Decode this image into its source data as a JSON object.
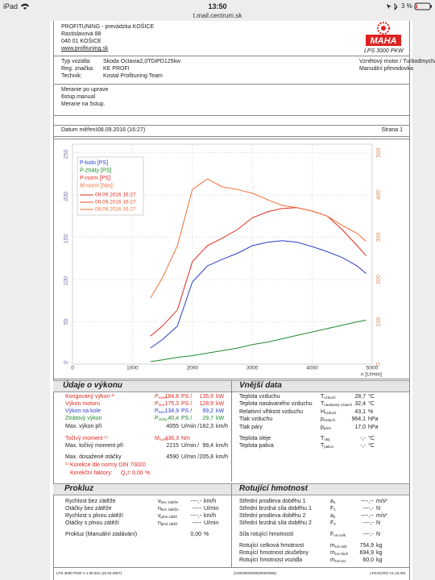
{
  "status_bar": {
    "device": "iPad",
    "time": "13:50",
    "battery": "3 %",
    "url": "t.mail.centrum.sk"
  },
  "header": {
    "company": [
      "PROFITUNING - prevádzka KOŠICE",
      "Rastislavova 88",
      "040 01 KOŠICE",
      "www.profituning.sk"
    ],
    "logo": "MAHA",
    "model": "LPS 3000 PKW"
  },
  "vehicle": {
    "rows": [
      [
        "Typ vozidla:",
        "Skoda Octavia2,0TDiPD125kw"
      ],
      [
        "Reg. značka:",
        "KE PROFI"
      ],
      [
        "Technik:",
        "Kostal Profituning Team"
      ]
    ],
    "engine": "Vznětový motor / Turbodmychadlo (vzduchem chlazené)",
    "gearbox": "Manuální převodovka"
  },
  "notes": [
    "Meranie po uprave",
    "6stup.manual",
    "Merane na 5stup."
  ],
  "date": {
    "label": "Datum měření:",
    "value": "08.09.2016 (16:27)",
    "page": "Strana 1"
  },
  "chart_data": {
    "type": "line",
    "x": [
      1300,
      1500,
      1750,
      2000,
      2250,
      2500,
      2750,
      3000,
      3250,
      3500,
      3750,
      4000,
      4250,
      4500,
      4750,
      4900
    ],
    "series": [
      {
        "name": "P-kolo [PS]",
        "color": "#2b3fc4",
        "values": [
          19,
          29,
          45,
          97,
          116,
          124,
          131,
          140,
          144,
          146,
          144,
          139,
          133,
          126,
          116,
          107
        ]
      },
      {
        "name": "P-ztráty [PS]",
        "color": "#1f8a2a",
        "values": [
          3,
          5,
          8,
          10,
          13,
          16,
          19,
          23,
          26,
          30,
          34,
          38,
          42,
          46,
          50,
          52
        ]
      },
      {
        "name": "P-norm [PS]",
        "color": "#e02a22",
        "values": [
          33,
          45,
          64,
          121,
          140,
          149,
          159,
          173,
          180,
          184,
          185,
          181,
          175,
          159,
          140,
          128
        ]
      },
      {
        "name": "M-norm [Nm]",
        "color": "#f0703a",
        "axis": "y2",
        "values": [
          156,
          204,
          280,
          413,
          438,
          419,
          413,
          404,
          389,
          375,
          370,
          362,
          350,
          328,
          309,
          290
        ]
      }
    ],
    "runs": [
      {
        "label": "08.09.2016 16:27",
        "color": "#e02a22"
      },
      {
        "label": "08.09.2016 16:27",
        "color": "#e84a30"
      },
      {
        "label": "08.09.2016 16:27",
        "color": "#f0703a"
      }
    ],
    "xlim": [
      0,
      5000
    ],
    "xticks": [
      0,
      1000,
      2000,
      3000,
      4000,
      5000
    ],
    "x_label": "n [U/min]",
    "ylim": [
      0,
      260
    ],
    "yticks": [
      0,
      50,
      100,
      150,
      200,
      250
    ],
    "y_color": "#7a70a8",
    "y2lim": [
      0,
      520
    ],
    "y2ticks": [
      0,
      100,
      200,
      300,
      400,
      500
    ],
    "y2_color": "#e8875a",
    "grid": true
  },
  "performance": {
    "title": "Údaje o výkonu",
    "rows": [
      {
        "label": "Korigovaný výkon ¹⁾",
        "sym": "P",
        "sub": "norm",
        "value": "184,8",
        "unit": "PS /",
        "value2": "135,9",
        "unit2": "kW",
        "color": "#e02a22"
      },
      {
        "label": "Výkon motoru",
        "sym": "P",
        "sub": "mot",
        "value": "175,3",
        "unit": "PS /",
        "value2": "128,9",
        "unit2": "kW",
        "color": "#e02a22"
      },
      {
        "label": "Výkon na kole",
        "sym": "P",
        "sub": "kolo",
        "value": "134,9",
        "unit": "PS /",
        "value2": "99,2",
        "unit2": "kW",
        "color": "#2b3fc4"
      },
      {
        "label": "Ztrátový výkon",
        "sym": "P",
        "sub": "ztráty",
        "value": "40,4",
        "unit": "PS /",
        "value2": "29,7",
        "unit2": "kW",
        "color": "#1f8a2a"
      },
      {
        "label": "Max. výkon při",
        "value": "4055",
        "unit": "U/min /",
        "value2": "182,3",
        "unit2": "km/h",
        "color": "#222222"
      },
      {
        "label": "Točivý moment ¹⁾",
        "sym": "M",
        "sub": "norm",
        "value": "436,3",
        "unit": "Nm",
        "color": "#e02a22"
      },
      {
        "label": "Max. točivý moment při",
        "value": "2215",
        "unit": "U/min /",
        "value2": "99,4",
        "unit2": "km/h",
        "color": "#222222"
      },
      {
        "label": "Max. dosažené otáčky",
        "value": "4590",
        "unit": "U/min /",
        "value2": "205,8",
        "unit2": "km/h",
        "color": "#222222"
      }
    ],
    "footnote": "¹⁾ Korekce dle normy DIN 70020",
    "factor": {
      "label": "Korekční faktory:",
      "sym": "Q",
      "sub": "o",
      "value": "= 0,00",
      "unit": "%"
    },
    "note_color": "#e02a22"
  },
  "ambient": {
    "title": "Vnější data",
    "rows": [
      {
        "label": "Teplota vzduchu",
        "sym": "T",
        "sub": "vzduch",
        "value": "28,7",
        "unit": "°C"
      },
      {
        "label": "Teplota nasávaného vzduchu",
        "sym": "T",
        "sub": "nasávaný vzduch",
        "value": "32,4",
        "unit": "°C"
      },
      {
        "label": "Relativní vlhkost vzduchu",
        "sym": "H",
        "sub": "vzduch",
        "value": "43,1",
        "unit": "%"
      },
      {
        "label": "Tlak vzduchu",
        "sym": "p",
        "sub": "vzduch",
        "value": "964,1",
        "unit": "hPa"
      },
      {
        "label": "Tlak páry",
        "sym": "p",
        "sub": "pára",
        "value": "17,0",
        "unit": "hPa"
      },
      {
        "label": "Teplota oleje",
        "sym": "T",
        "sub": "olej",
        "value": "-,-",
        "unit": "°C"
      },
      {
        "label": "Teplota paliva",
        "sym": "T",
        "sub": "palivo",
        "value": "-,-",
        "unit": "°C"
      }
    ]
  },
  "slip": {
    "title": "Prokluz",
    "rows": [
      {
        "label": "Rychlost bez zátěže",
        "sym": "v",
        "sub": "bez zátěže",
        "value": "----,-",
        "unit": "km/h"
      },
      {
        "label": "Otáčky bez zátěže",
        "sym": "n",
        "sub": "bez zátěže",
        "value": "-----",
        "unit": "U/min"
      },
      {
        "label": "Rychlost s plnou zátěží",
        "sym": "v",
        "sub": "plná zátěž",
        "value": "----,-",
        "unit": "km/h"
      },
      {
        "label": "Otáčky s plnou zátěží",
        "sym": "n",
        "sub": "plná zátěž",
        "value": "-----",
        "unit": "U/min"
      },
      {
        "label": "Prokluz (Manuální zadávání)",
        "value": "0,00",
        "unit": "%"
      }
    ]
  },
  "rotating": {
    "title": "Rotující hmotnost",
    "rows": [
      {
        "label": "Střední prodleva doběhu 1",
        "sym": "a",
        "sub": "1",
        "value": "----,--",
        "unit": "m/s²"
      },
      {
        "label": "Střední brzdná síla doběhu 1",
        "sym": "F",
        "sub": "1",
        "value": "----,-",
        "unit": "N"
      },
      {
        "label": "Střední prodleva doběhu 2",
        "sym": "a",
        "sub": "2",
        "value": "----,--",
        "unit": "m/s²"
      },
      {
        "label": "Střední brzdná síla doběhu 2",
        "sym": "F",
        "sub": "2",
        "value": "----,-",
        "unit": "N"
      },
      {
        "label": "Síla rotující hmotnosti",
        "sym": "F",
        "sub": "rot-celk",
        "value": "----,-",
        "unit": "N"
      },
      {
        "label": "Rotující celková hmotnost",
        "sym": "m",
        "sub": "rot-celk",
        "value": "754,9",
        "unit": "kg"
      },
      {
        "label": "Rotující hmotnost zkušebny",
        "sym": "m",
        "sub": "rot-zkuš",
        "value": "694,9",
        "unit": "kg"
      },
      {
        "label": "Rotující hmotnost vozidla",
        "sym": "m",
        "sub": "rot-voz",
        "value": "60,0",
        "unit": "kg"
      }
    ]
  },
  "footer": [
    "LPS 3000 PKW V 1.09.001 (16.02.2007)",
    "(100/000/00000/000/0065)",
    "LPS-EURO V1.24.001"
  ]
}
